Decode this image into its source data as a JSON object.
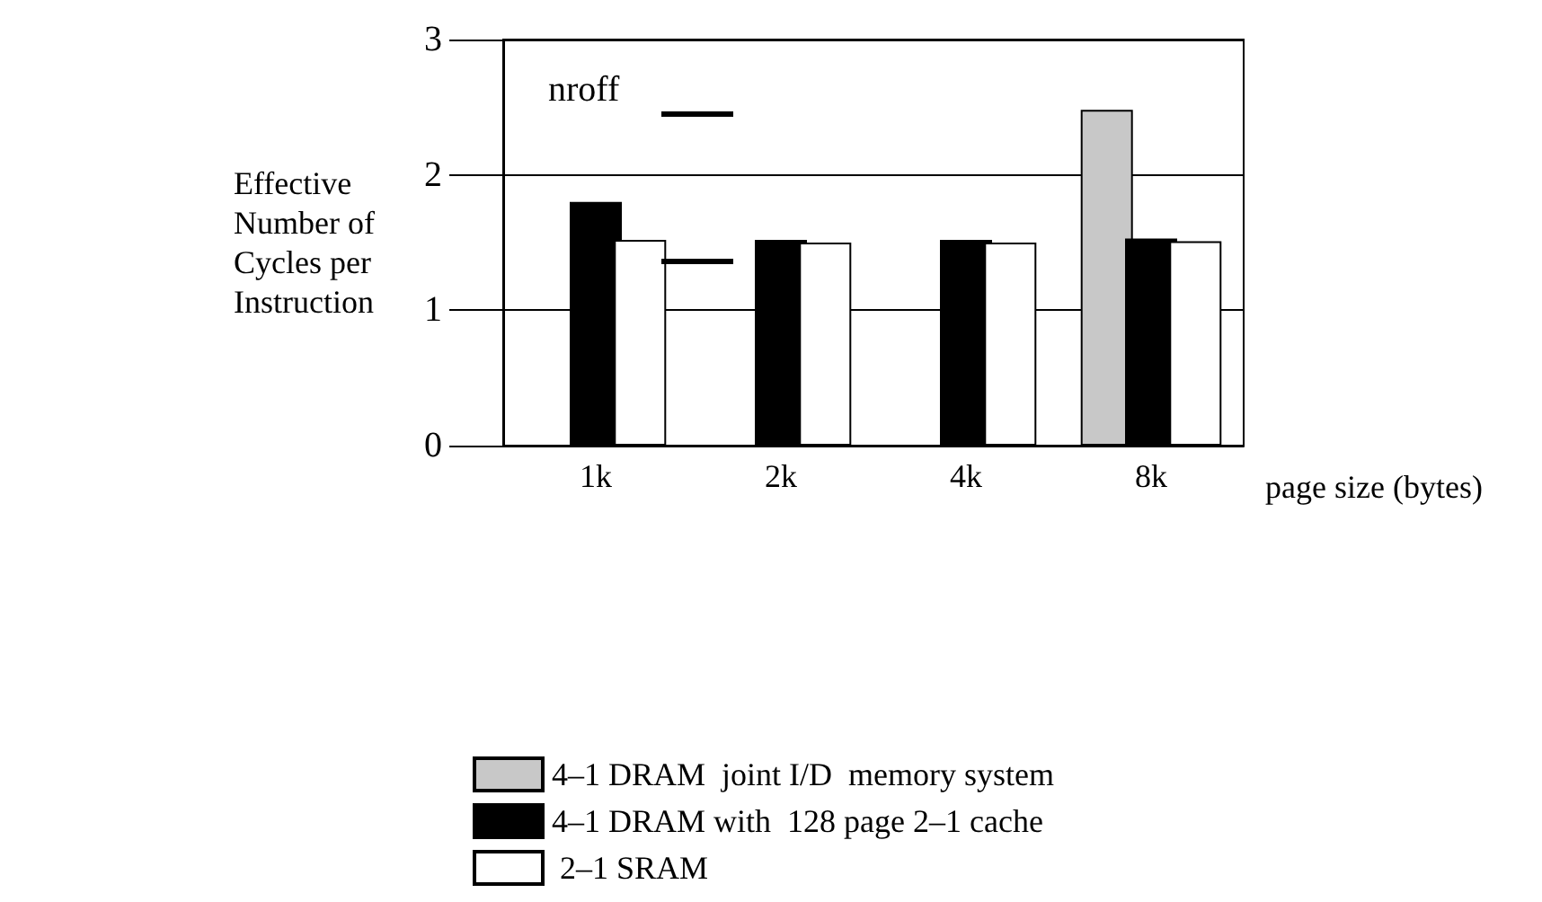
{
  "chart_data": {
    "type": "bar",
    "ylabel": "Effective\nNumber of\nCycles per\nInstruction",
    "xlabel": "page size (bytes)",
    "categories": [
      "1k",
      "2k",
      "4k",
      "8k"
    ],
    "series": [
      {
        "name": "4–1 DRAM  joint I/D  memory system",
        "color": "#c8c8c8",
        "values": [
          null,
          null,
          null,
          2.48
        ]
      },
      {
        "name": "4–1 DRAM with  128 page 2–1 cache",
        "color": "#000000",
        "values": [
          1.8,
          1.52,
          1.52,
          1.53
        ]
      },
      {
        "name": " 2–1 SRAM",
        "color": "#ffffff",
        "values": [
          1.52,
          1.5,
          1.5,
          1.51
        ]
      }
    ],
    "annotations": [
      "nroff"
    ],
    "ylim": [
      0,
      3
    ],
    "yticks": [
      0,
      1,
      2,
      3
    ],
    "grid": "y",
    "legend": "bottom"
  }
}
